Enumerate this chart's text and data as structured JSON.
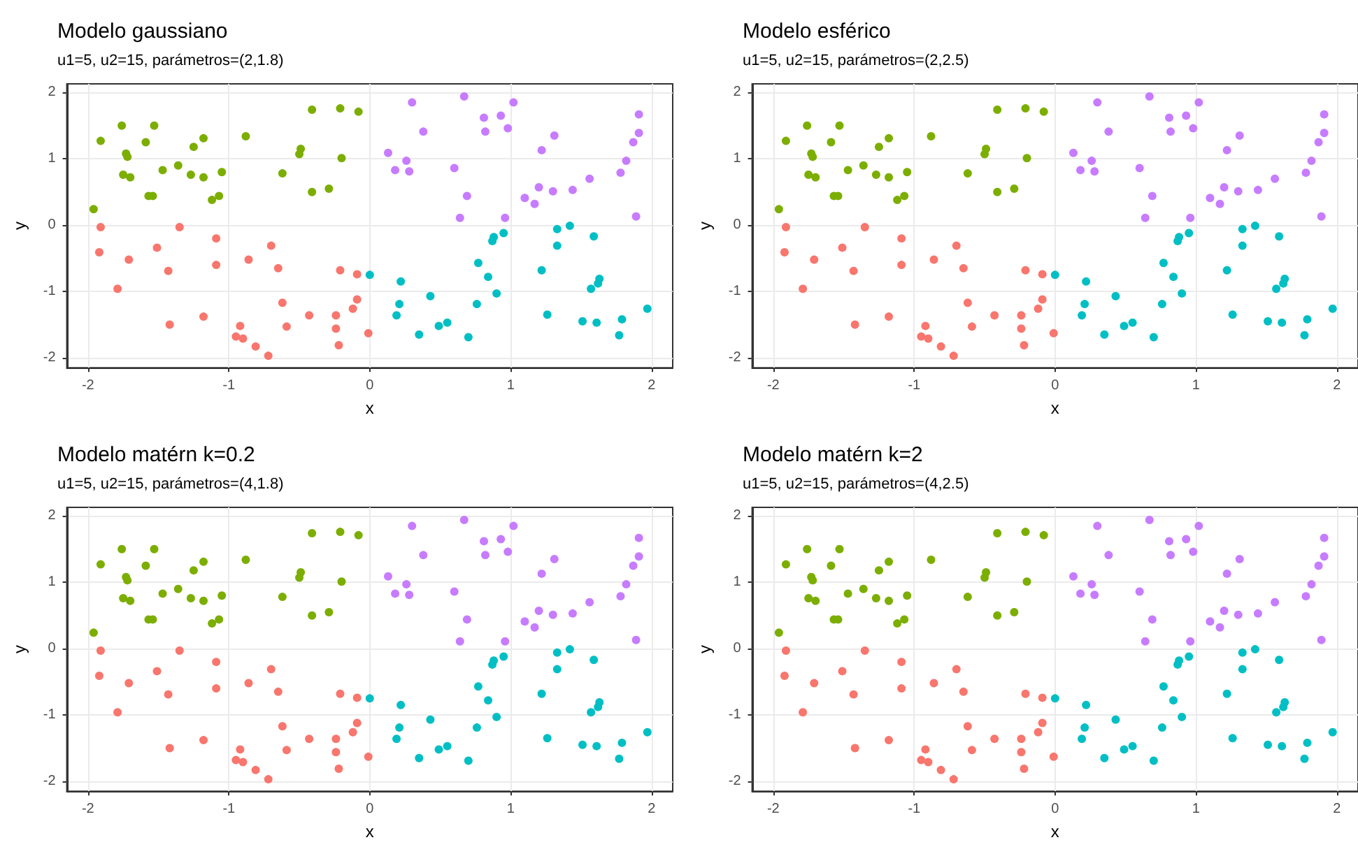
{
  "chart_data": [
    {
      "type": "scatter",
      "title": "Modelo gaussiano",
      "subtitle": "u1=5, u2=15, parámetros=(2,1.8)",
      "xlabel": "x",
      "ylabel": "y",
      "xlim": [
        -2.15,
        2.15
      ],
      "ylim": [
        -2.15,
        2.13
      ],
      "xticks": [
        -2,
        -1,
        0,
        1,
        2
      ],
      "yticks": [
        -2,
        -1,
        0,
        1,
        2
      ],
      "grid": true,
      "marker": "circle",
      "series": [
        {
          "color": "#f8766d",
          "x": [
            -1.91,
            -1.92,
            -1.79,
            -1.71,
            -1.51,
            -1.43,
            -1.42,
            -1.35,
            -1.18,
            -1.09,
            -1.09,
            -0.95,
            -0.92,
            -0.9,
            -0.86,
            -0.81,
            -0.72,
            -0.7,
            -0.65,
            -0.62,
            -0.59,
            -0.43,
            -0.24,
            -0.24,
            -0.22,
            -0.21,
            -0.12,
            -0.09,
            -0.09,
            -0.01
          ],
          "values": [
            -0.03,
            -0.41,
            -0.96,
            -0.52,
            -0.34,
            -0.69,
            -1.5,
            -0.03,
            -1.38,
            -0.2,
            -0.6,
            -1.68,
            -1.52,
            -1.71,
            -0.52,
            -1.83,
            -1.97,
            -0.31,
            -0.65,
            -1.17,
            -1.53,
            -1.36,
            -1.36,
            -1.56,
            -1.81,
            -0.68,
            -1.26,
            -1.12,
            -0.74,
            -1.63
          ]
        },
        {
          "color": "#7cae00",
          "x": [
            -1.96,
            -1.91,
            -1.76,
            -1.73,
            -1.72,
            -1.75,
            -1.7,
            -1.59,
            -1.53,
            -1.57,
            -1.54,
            -1.47,
            -1.36,
            -1.27,
            -1.25,
            -1.18,
            -1.18,
            -1.12,
            -1.07,
            -1.05,
            -0.88,
            -0.62,
            -0.5,
            -0.49,
            -0.41,
            -0.41,
            -0.29,
            -0.21,
            -0.2,
            -0.08
          ],
          "values": [
            0.24,
            1.27,
            1.5,
            1.08,
            1.03,
            0.76,
            0.72,
            1.25,
            1.5,
            0.44,
            0.44,
            0.83,
            0.9,
            0.76,
            1.18,
            1.31,
            0.72,
            0.38,
            0.44,
            0.8,
            1.34,
            0.78,
            1.07,
            1.15,
            0.5,
            1.74,
            0.55,
            1.76,
            1.01,
            1.71
          ]
        },
        {
          "color": "#00bfc4",
          "x": [
            0.0,
            0.22,
            0.21,
            0.19,
            0.35,
            0.43,
            0.49,
            0.55,
            0.7,
            0.76,
            0.77,
            0.84,
            0.9,
            0.87,
            0.88,
            0.95,
            1.22,
            1.26,
            1.33,
            1.33,
            1.42,
            1.51,
            1.59,
            1.57,
            1.62,
            1.63,
            1.61,
            1.77,
            1.79,
            1.97
          ],
          "values": [
            -0.75,
            -0.85,
            -1.19,
            -1.36,
            -1.65,
            -1.07,
            -1.52,
            -1.47,
            -1.69,
            -1.19,
            -0.57,
            -0.78,
            -1.03,
            -0.24,
            -0.18,
            -0.12,
            -0.68,
            -1.35,
            -0.06,
            -0.31,
            -0.01,
            -1.45,
            -0.17,
            -0.96,
            -0.88,
            -0.81,
            -1.47,
            -1.66,
            -1.42,
            -1.26
          ]
        },
        {
          "color": "#c77cff",
          "x": [
            0.3,
            0.13,
            0.18,
            0.26,
            0.28,
            0.38,
            0.6,
            0.67,
            0.69,
            0.64,
            0.81,
            0.82,
            0.93,
            0.98,
            1.02,
            0.96,
            1.1,
            1.17,
            1.2,
            1.22,
            1.3,
            1.31,
            1.44,
            1.56,
            1.78,
            1.82,
            1.87,
            1.91,
            1.91,
            1.89
          ],
          "values": [
            1.85,
            1.09,
            0.83,
            0.97,
            0.81,
            1.41,
            0.86,
            1.94,
            0.44,
            0.11,
            1.62,
            1.41,
            1.65,
            1.46,
            1.85,
            0.11,
            0.41,
            0.32,
            0.57,
            1.13,
            0.51,
            1.35,
            0.53,
            0.7,
            0.79,
            0.97,
            1.25,
            1.39,
            1.67,
            0.13
          ]
        }
      ]
    },
    {
      "type": "scatter",
      "title": "Modelo esférico",
      "subtitle": "u1=5, u2=15, parámetros=(2,2.5)",
      "xlabel": "x",
      "ylabel": "y",
      "xlim": [
        -2.15,
        2.15
      ],
      "ylim": [
        -2.15,
        2.13
      ],
      "xticks": [
        -2,
        -1,
        0,
        1,
        2
      ],
      "yticks": [
        -2,
        -1,
        0,
        1,
        2
      ],
      "grid": true,
      "marker": "circle",
      "series": [
        {
          "color": "#f8766d",
          "x": [
            -1.91,
            -1.92,
            -1.79,
            -1.71,
            -1.51,
            -1.43,
            -1.42,
            -1.35,
            -1.18,
            -1.09,
            -1.09,
            -0.95,
            -0.92,
            -0.9,
            -0.86,
            -0.81,
            -0.72,
            -0.7,
            -0.65,
            -0.62,
            -0.59,
            -0.43,
            -0.24,
            -0.24,
            -0.22,
            -0.21,
            -0.12,
            -0.09,
            -0.09,
            -0.01
          ],
          "values": [
            -0.03,
            -0.41,
            -0.96,
            -0.52,
            -0.34,
            -0.69,
            -1.5,
            -0.03,
            -1.38,
            -0.2,
            -0.6,
            -1.68,
            -1.52,
            -1.71,
            -0.52,
            -1.83,
            -1.97,
            -0.31,
            -0.65,
            -1.17,
            -1.53,
            -1.36,
            -1.36,
            -1.56,
            -1.81,
            -0.68,
            -1.26,
            -1.12,
            -0.74,
            -1.63
          ]
        },
        {
          "color": "#7cae00",
          "x": [
            -1.96,
            -1.91,
            -1.76,
            -1.73,
            -1.72,
            -1.75,
            -1.7,
            -1.59,
            -1.53,
            -1.57,
            -1.54,
            -1.47,
            -1.36,
            -1.27,
            -1.25,
            -1.18,
            -1.18,
            -1.12,
            -1.07,
            -1.05,
            -0.88,
            -0.62,
            -0.5,
            -0.49,
            -0.41,
            -0.41,
            -0.29,
            -0.21,
            -0.2,
            -0.08
          ],
          "values": [
            0.24,
            1.27,
            1.5,
            1.08,
            1.03,
            0.76,
            0.72,
            1.25,
            1.5,
            0.44,
            0.44,
            0.83,
            0.9,
            0.76,
            1.18,
            1.31,
            0.72,
            0.38,
            0.44,
            0.8,
            1.34,
            0.78,
            1.07,
            1.15,
            0.5,
            1.74,
            0.55,
            1.76,
            1.01,
            1.71
          ]
        },
        {
          "color": "#00bfc4",
          "x": [
            0.0,
            0.22,
            0.21,
            0.19,
            0.35,
            0.43,
            0.49,
            0.55,
            0.7,
            0.76,
            0.77,
            0.84,
            0.9,
            0.87,
            0.88,
            0.95,
            1.22,
            1.26,
            1.33,
            1.33,
            1.42,
            1.51,
            1.59,
            1.57,
            1.62,
            1.63,
            1.61,
            1.77,
            1.79,
            1.97
          ],
          "values": [
            -0.75,
            -0.85,
            -1.19,
            -1.36,
            -1.65,
            -1.07,
            -1.52,
            -1.47,
            -1.69,
            -1.19,
            -0.57,
            -0.78,
            -1.03,
            -0.24,
            -0.18,
            -0.12,
            -0.68,
            -1.35,
            -0.06,
            -0.31,
            -0.01,
            -1.45,
            -0.17,
            -0.96,
            -0.88,
            -0.81,
            -1.47,
            -1.66,
            -1.42,
            -1.26
          ]
        },
        {
          "color": "#c77cff",
          "x": [
            0.3,
            0.13,
            0.18,
            0.26,
            0.28,
            0.38,
            0.6,
            0.67,
            0.69,
            0.64,
            0.81,
            0.82,
            0.93,
            0.98,
            1.02,
            0.96,
            1.1,
            1.17,
            1.2,
            1.22,
            1.3,
            1.31,
            1.44,
            1.56,
            1.78,
            1.82,
            1.87,
            1.91,
            1.91,
            1.89
          ],
          "values": [
            1.85,
            1.09,
            0.83,
            0.97,
            0.81,
            1.41,
            0.86,
            1.94,
            0.44,
            0.11,
            1.62,
            1.41,
            1.65,
            1.46,
            1.85,
            0.11,
            0.41,
            0.32,
            0.57,
            1.13,
            0.51,
            1.35,
            0.53,
            0.7,
            0.79,
            0.97,
            1.25,
            1.39,
            1.67,
            0.13
          ]
        }
      ]
    },
    {
      "type": "scatter",
      "title": "Modelo matérn k=0.2",
      "subtitle": "u1=5, u2=15, parámetros=(4,1.8)",
      "xlabel": "x",
      "ylabel": "y",
      "xlim": [
        -2.15,
        2.15
      ],
      "ylim": [
        -2.15,
        2.13
      ],
      "xticks": [
        -2,
        -1,
        0,
        1,
        2
      ],
      "yticks": [
        -2,
        -1,
        0,
        1,
        2
      ],
      "grid": true,
      "marker": "circle",
      "series": [
        {
          "color": "#f8766d",
          "x": [
            -1.91,
            -1.92,
            -1.79,
            -1.71,
            -1.51,
            -1.43,
            -1.42,
            -1.35,
            -1.18,
            -1.09,
            -1.09,
            -0.95,
            -0.92,
            -0.9,
            -0.86,
            -0.81,
            -0.72,
            -0.7,
            -0.65,
            -0.62,
            -0.59,
            -0.43,
            -0.24,
            -0.24,
            -0.22,
            -0.21,
            -0.12,
            -0.09,
            -0.09,
            -0.01
          ],
          "values": [
            -0.03,
            -0.41,
            -0.96,
            -0.52,
            -0.34,
            -0.69,
            -1.5,
            -0.03,
            -1.38,
            -0.2,
            -0.6,
            -1.68,
            -1.52,
            -1.71,
            -0.52,
            -1.83,
            -1.97,
            -0.31,
            -0.65,
            -1.17,
            -1.53,
            -1.36,
            -1.36,
            -1.56,
            -1.81,
            -0.68,
            -1.26,
            -1.12,
            -0.74,
            -1.63
          ]
        },
        {
          "color": "#7cae00",
          "x": [
            -1.96,
            -1.91,
            -1.76,
            -1.73,
            -1.72,
            -1.75,
            -1.7,
            -1.59,
            -1.53,
            -1.57,
            -1.54,
            -1.47,
            -1.36,
            -1.27,
            -1.25,
            -1.18,
            -1.18,
            -1.12,
            -1.07,
            -1.05,
            -0.88,
            -0.62,
            -0.5,
            -0.49,
            -0.41,
            -0.41,
            -0.29,
            -0.21,
            -0.2,
            -0.08
          ],
          "values": [
            0.24,
            1.27,
            1.5,
            1.08,
            1.03,
            0.76,
            0.72,
            1.25,
            1.5,
            0.44,
            0.44,
            0.83,
            0.9,
            0.76,
            1.18,
            1.31,
            0.72,
            0.38,
            0.44,
            0.8,
            1.34,
            0.78,
            1.07,
            1.15,
            0.5,
            1.74,
            0.55,
            1.76,
            1.01,
            1.71
          ]
        },
        {
          "color": "#00bfc4",
          "x": [
            0.0,
            0.22,
            0.21,
            0.19,
            0.35,
            0.43,
            0.49,
            0.55,
            0.7,
            0.76,
            0.77,
            0.84,
            0.9,
            0.87,
            0.88,
            0.95,
            1.22,
            1.26,
            1.33,
            1.33,
            1.42,
            1.51,
            1.59,
            1.57,
            1.62,
            1.63,
            1.61,
            1.77,
            1.79,
            1.97
          ],
          "values": [
            -0.75,
            -0.85,
            -1.19,
            -1.36,
            -1.65,
            -1.07,
            -1.52,
            -1.47,
            -1.69,
            -1.19,
            -0.57,
            -0.78,
            -1.03,
            -0.24,
            -0.18,
            -0.12,
            -0.68,
            -1.35,
            -0.06,
            -0.31,
            -0.01,
            -1.45,
            -0.17,
            -0.96,
            -0.88,
            -0.81,
            -1.47,
            -1.66,
            -1.42,
            -1.26
          ]
        },
        {
          "color": "#c77cff",
          "x": [
            0.3,
            0.13,
            0.18,
            0.26,
            0.28,
            0.38,
            0.6,
            0.67,
            0.69,
            0.64,
            0.81,
            0.82,
            0.93,
            0.98,
            1.02,
            0.96,
            1.1,
            1.17,
            1.2,
            1.22,
            1.3,
            1.31,
            1.44,
            1.56,
            1.78,
            1.82,
            1.87,
            1.91,
            1.91,
            1.89
          ],
          "values": [
            1.85,
            1.09,
            0.83,
            0.97,
            0.81,
            1.41,
            0.86,
            1.94,
            0.44,
            0.11,
            1.62,
            1.41,
            1.65,
            1.46,
            1.85,
            0.11,
            0.41,
            0.32,
            0.57,
            1.13,
            0.51,
            1.35,
            0.53,
            0.7,
            0.79,
            0.97,
            1.25,
            1.39,
            1.67,
            0.13
          ]
        }
      ]
    },
    {
      "type": "scatter",
      "title": "Modelo matérn k=2",
      "subtitle": "u1=5, u2=15, parámetros=(4,2.5)",
      "xlabel": "x",
      "ylabel": "y",
      "xlim": [
        -2.15,
        2.15
      ],
      "ylim": [
        -2.15,
        2.13
      ],
      "xticks": [
        -2,
        -1,
        0,
        1,
        2
      ],
      "yticks": [
        -2,
        -1,
        0,
        1,
        2
      ],
      "grid": true,
      "marker": "circle",
      "series": [
        {
          "color": "#f8766d",
          "x": [
            -1.91,
            -1.92,
            -1.79,
            -1.71,
            -1.51,
            -1.43,
            -1.42,
            -1.35,
            -1.18,
            -1.09,
            -1.09,
            -0.95,
            -0.92,
            -0.9,
            -0.86,
            -0.81,
            -0.72,
            -0.7,
            -0.65,
            -0.62,
            -0.59,
            -0.43,
            -0.24,
            -0.24,
            -0.22,
            -0.21,
            -0.12,
            -0.09,
            -0.09,
            -0.01
          ],
          "values": [
            -0.03,
            -0.41,
            -0.96,
            -0.52,
            -0.34,
            -0.69,
            -1.5,
            -0.03,
            -1.38,
            -0.2,
            -0.6,
            -1.68,
            -1.52,
            -1.71,
            -0.52,
            -1.83,
            -1.97,
            -0.31,
            -0.65,
            -1.17,
            -1.53,
            -1.36,
            -1.36,
            -1.56,
            -1.81,
            -0.68,
            -1.26,
            -1.12,
            -0.74,
            -1.63
          ]
        },
        {
          "color": "#7cae00",
          "x": [
            -1.96,
            -1.91,
            -1.76,
            -1.73,
            -1.72,
            -1.75,
            -1.7,
            -1.59,
            -1.53,
            -1.57,
            -1.54,
            -1.47,
            -1.36,
            -1.27,
            -1.25,
            -1.18,
            -1.18,
            -1.12,
            -1.07,
            -1.05,
            -0.88,
            -0.62,
            -0.5,
            -0.49,
            -0.41,
            -0.41,
            -0.29,
            -0.21,
            -0.2,
            -0.08
          ],
          "values": [
            0.24,
            1.27,
            1.5,
            1.08,
            1.03,
            0.76,
            0.72,
            1.25,
            1.5,
            0.44,
            0.44,
            0.83,
            0.9,
            0.76,
            1.18,
            1.31,
            0.72,
            0.38,
            0.44,
            0.8,
            1.34,
            0.78,
            1.07,
            1.15,
            0.5,
            1.74,
            0.55,
            1.76,
            1.01,
            1.71
          ]
        },
        {
          "color": "#00bfc4",
          "x": [
            0.0,
            0.22,
            0.21,
            0.19,
            0.35,
            0.43,
            0.49,
            0.55,
            0.7,
            0.76,
            0.77,
            0.84,
            0.9,
            0.87,
            0.88,
            0.95,
            1.22,
            1.26,
            1.33,
            1.33,
            1.42,
            1.51,
            1.59,
            1.57,
            1.62,
            1.63,
            1.61,
            1.77,
            1.79,
            1.97
          ],
          "values": [
            -0.75,
            -0.85,
            -1.19,
            -1.36,
            -1.65,
            -1.07,
            -1.52,
            -1.47,
            -1.69,
            -1.19,
            -0.57,
            -0.78,
            -1.03,
            -0.24,
            -0.18,
            -0.12,
            -0.68,
            -1.35,
            -0.06,
            -0.31,
            -0.01,
            -1.45,
            -0.17,
            -0.96,
            -0.88,
            -0.81,
            -1.47,
            -1.66,
            -1.42,
            -1.26
          ]
        },
        {
          "color": "#c77cff",
          "x": [
            0.3,
            0.13,
            0.18,
            0.26,
            0.28,
            0.38,
            0.6,
            0.67,
            0.69,
            0.64,
            0.81,
            0.82,
            0.93,
            0.98,
            1.02,
            0.96,
            1.1,
            1.17,
            1.2,
            1.22,
            1.3,
            1.31,
            1.44,
            1.56,
            1.78,
            1.82,
            1.87,
            1.91,
            1.91,
            1.89
          ],
          "values": [
            1.85,
            1.09,
            0.83,
            0.97,
            0.81,
            1.41,
            0.86,
            1.94,
            0.44,
            0.11,
            1.62,
            1.41,
            1.65,
            1.46,
            1.85,
            0.11,
            0.41,
            0.32,
            0.57,
            1.13,
            0.51,
            1.35,
            0.53,
            0.7,
            0.79,
            0.97,
            1.25,
            1.39,
            1.67,
            0.13
          ]
        }
      ]
    }
  ]
}
